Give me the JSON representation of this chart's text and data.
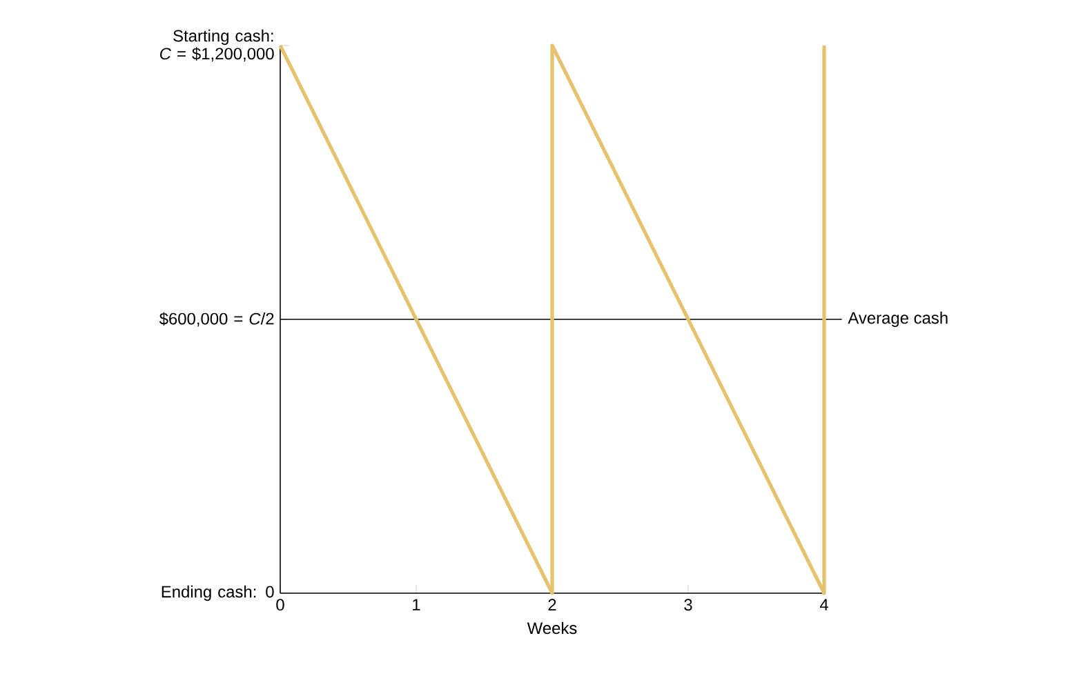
{
  "chart_data": {
    "type": "line",
    "xlabel": "Weeks",
    "x": [
      0,
      2,
      2,
      4,
      4
    ],
    "series": [
      {
        "color": "#e6c26e",
        "values": [
          1200000,
          0,
          1200000,
          0,
          1200000
        ]
      }
    ],
    "xlim": [
      0,
      4
    ],
    "xticks": [
      0,
      1,
      2,
      3,
      4
    ],
    "ylim": [
      0,
      1200000
    ],
    "yticks": [
      {
        "value": 0,
        "label": "Ending cash: 0"
      },
      {
        "value": 600000,
        "label": "$600,000 = *C*/2"
      },
      {
        "value": 1200000,
        "label": "Starting cash: *C* = $1,200,000"
      }
    ],
    "ref_lines": [
      {
        "axis": "y",
        "value": 600000,
        "label": "Average cash",
        "color": "#000000"
      }
    ]
  }
}
